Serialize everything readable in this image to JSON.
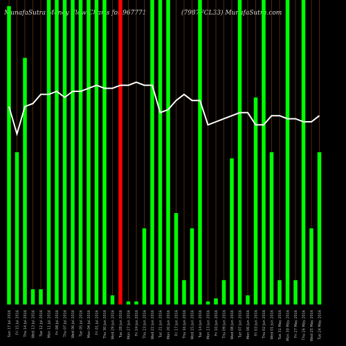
{
  "header": {
    "left": "MunafaSutra  Money Flow  Charts for 967771",
    "right": "(7987FCL33)  MunafaSutra.com"
  },
  "colors": {
    "background": "#000000",
    "up_bar": "#00ff00",
    "down_bar": "#ff0000",
    "line": "#ffffff",
    "grid": "#8b4513",
    "label": "#bbbbbb"
  },
  "chart_data": {
    "type": "bar",
    "categories": [
      "Sun 17 Jul 2016",
      "Fri 15 Jul 2016",
      "Thu 14 Jul 2016",
      "Wed 13 Jul 2016",
      "Tue 12 Jul 2016",
      "Mon 11 Jul 2016",
      "Fri 08 Jul 2016",
      "Thu 07 Jul 2016",
      "Wed 06 Jul 2016",
      "Tue 05 Jul 2016",
      "Mon 04 Jul 2016",
      "Fri 01 Jul 2016",
      "Thu 30 Jun 2016",
      "Wed 29 Jun 2016",
      "Tue 28 Jun 2016",
      "Mon 27 Jun 2016",
      "Fri 24 Jun 2016",
      "Thu 23 Jun 2016",
      "Wed 22 Jun 2016",
      "Tue 21 Jun 2016",
      "Mon 20 Jun 2016",
      "Fri 17 Jun 2016",
      "Thu 16 Jun 2016",
      "Wed 15 Jun 2016",
      "Tue 14 Jun 2016",
      "Mon 13 Jun 2016",
      "Fri 10 Jun 2016",
      "Thu 09 Jun 2016",
      "Wed 08 Jun 2016",
      "Tue 07 Jun 2016",
      "Mon 06 Jun 2016",
      "Fri 03 Jun 2016",
      "Thu 02 Jun 2016",
      "Wed 01 Jun 2016",
      "Tue 31 May 2016",
      "Mon 30 May 2016",
      "Fri 27 May 2016",
      "Thu 26 May 2016",
      "Wed 25 May 2016",
      "Tue 24 May 2016"
    ],
    "series": [
      {
        "values": [
          98,
          50,
          81,
          5,
          5,
          100,
          100,
          100,
          100,
          100,
          100,
          100,
          100,
          3,
          100,
          1,
          1,
          25,
          100,
          100,
          100,
          30,
          8,
          25,
          100,
          1,
          2,
          8,
          48,
          100,
          3,
          68,
          100,
          50,
          8,
          100,
          8,
          100,
          25,
          50
        ],
        "colors": [
          "up",
          "up",
          "up",
          "up",
          "up",
          "up",
          "up",
          "up",
          "up",
          "up",
          "up",
          "up",
          "up",
          "up",
          "down",
          "up",
          "up",
          "up",
          "up",
          "up",
          "up",
          "up",
          "up",
          "up",
          "up",
          "up",
          "up",
          "up",
          "up",
          "up",
          "up",
          "up",
          "up",
          "up",
          "up",
          "up",
          "up",
          "up",
          "up",
          "up"
        ]
      },
      {
        "values": [
          65,
          56,
          65,
          66,
          69,
          69,
          70,
          68,
          70,
          70,
          71,
          72,
          71,
          71,
          72,
          72,
          73,
          72,
          72,
          63,
          64,
          67,
          69,
          67,
          67,
          59,
          60,
          61,
          62,
          63,
          63,
          59,
          59,
          62,
          62,
          61,
          61,
          60,
          60,
          62
        ]
      }
    ],
    "ylim": [
      0,
      100
    ],
    "grid": true
  }
}
